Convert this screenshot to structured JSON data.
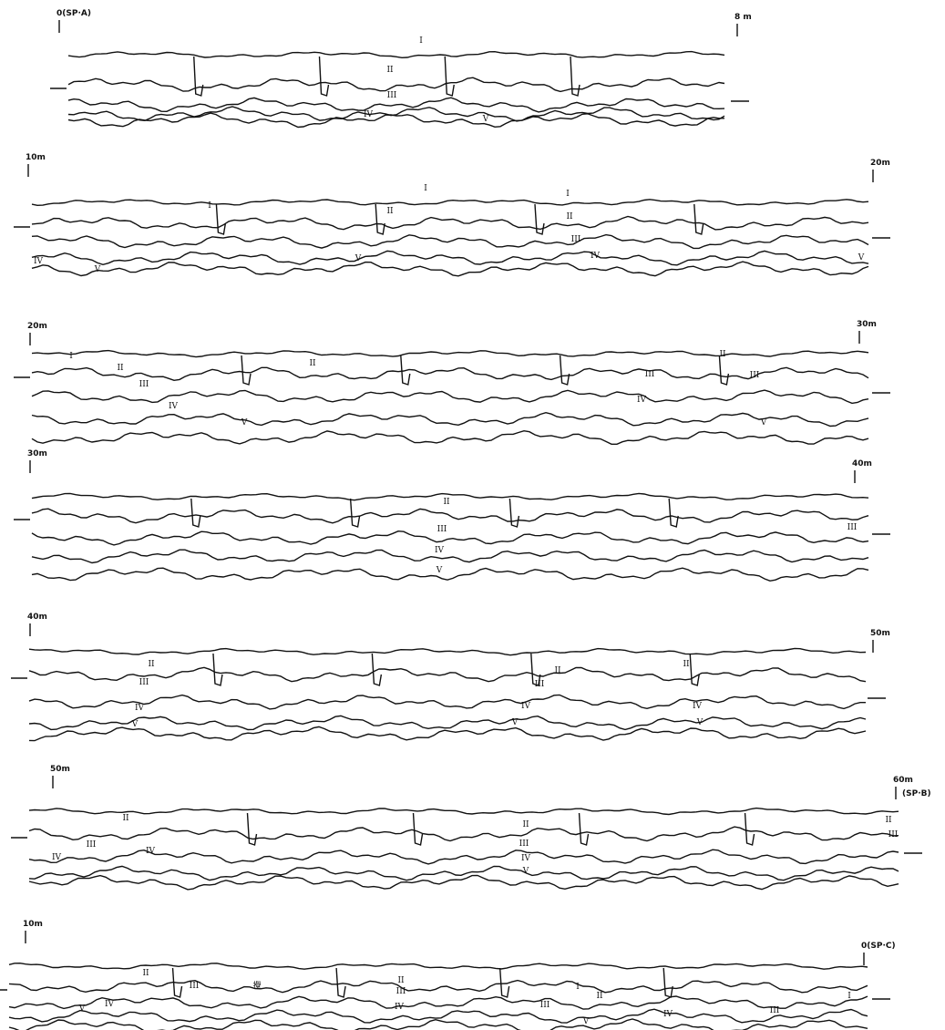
{
  "strips": [
    {
      "start": "0(SP·A)",
      "end": "8 m",
      "layers": [
        "I",
        "II",
        "III",
        "IV",
        "V"
      ]
    },
    {
      "start": "10m",
      "end": "20m",
      "layers": [
        "I",
        "I",
        "I",
        "II",
        "II",
        "III",
        "IV",
        "IV",
        "V",
        "V",
        "V"
      ]
    },
    {
      "start": "20m",
      "end": "30m",
      "layers": [
        "I",
        "II",
        "II",
        "II",
        "III",
        "III",
        "III",
        "IV",
        "IV",
        "V",
        "V"
      ]
    },
    {
      "start": "30m",
      "end": "40m",
      "layers": [
        "II",
        "III",
        "III",
        "IV",
        "V"
      ]
    },
    {
      "start": "40m",
      "end": "50m",
      "layers": [
        "II",
        "II",
        "II",
        "III",
        "III",
        "IV",
        "IV",
        "IV",
        "V",
        "V",
        "V"
      ]
    },
    {
      "start": "50m",
      "end": "60m",
      "end_note": "(SP·B)",
      "layers": [
        "II",
        "II",
        "II",
        "III",
        "III",
        "III",
        "IV",
        "IV",
        "IV",
        "V"
      ]
    },
    {
      "start": "10m",
      "end": "0(SP·C)",
      "layers": [
        "II",
        "III",
        "攪",
        "III",
        "II",
        "IV",
        "I",
        "II",
        "III",
        "V",
        "IV",
        "III",
        "I",
        "IV",
        "V"
      ]
    }
  ]
}
